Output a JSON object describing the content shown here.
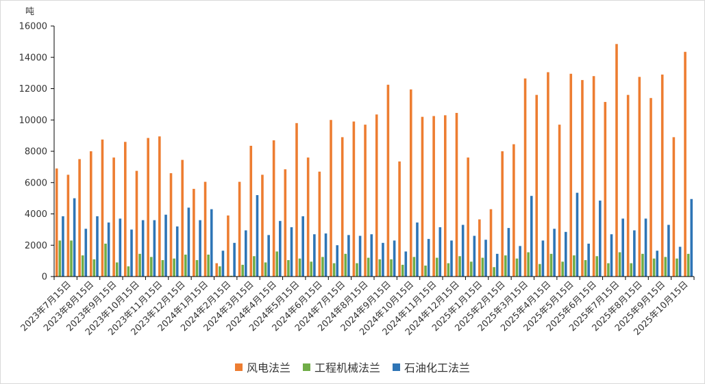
{
  "chart_data": {
    "type": "bar",
    "ylabel": "吨",
    "ylim": [
      0,
      16000
    ],
    "yticks": [
      0,
      2000,
      4000,
      6000,
      8000,
      10000,
      12000,
      14000,
      16000
    ],
    "legend_position": "bottom",
    "grid": false,
    "x_tick_labels": [
      "2023年7月15日",
      "2023年8月15日",
      "2023年9月15日",
      "2023年10月15日",
      "2023年11月15日",
      "2023年12月15日",
      "2024年1月15日",
      "2024年2月15日",
      "2024年3月15日",
      "2024年4月15日",
      "2024年5月15日",
      "2024年6月15日",
      "2024年7月15日",
      "2024年8月15日",
      "2024年9月15日",
      "2024年10月15日",
      "2024年11月15日",
      "2024年12月15日",
      "2025年1月15日",
      "2025年2月15日",
      "2025年3月15日",
      "2025年4月15日",
      "2025年5月15日",
      "2025年6月15日",
      "2025年7月15日",
      "2025年8月15日",
      "2025年9月15日",
      "2025年10月15日"
    ],
    "x_tick_positions": [
      1,
      3,
      5,
      7,
      9,
      11,
      13,
      15,
      17,
      19,
      21,
      23,
      25,
      27,
      29,
      31,
      33,
      35,
      37,
      39,
      41,
      43,
      45,
      47,
      49,
      51,
      53,
      55
    ],
    "series": [
      {
        "name": "风电法兰",
        "color": "#ED7D31",
        "values": [
          6900,
          6500,
          7500,
          8000,
          8750,
          7600,
          8600,
          6750,
          8850,
          8950,
          6600,
          7450,
          5600,
          6050,
          850,
          3900,
          6050,
          8350,
          6500,
          8700,
          6850,
          9800,
          7600,
          6700,
          10000,
          8900,
          9900,
          9700,
          10350,
          12250,
          7350,
          11950,
          10200,
          10250,
          10300,
          10450,
          7600,
          3650,
          4300,
          8000,
          8450,
          12650,
          11600,
          13050,
          9700,
          12950,
          12550,
          12800,
          11150,
          14850,
          11600,
          12750,
          11400,
          12900,
          8900,
          14350
        ]
      },
      {
        "name": "工程机械法兰",
        "color": "#70AD47",
        "values": [
          2300,
          2300,
          1350,
          1100,
          2100,
          900,
          650,
          1450,
          1250,
          1050,
          1150,
          1400,
          1050,
          1400,
          650,
          50,
          750,
          1300,
          900,
          1600,
          1050,
          1150,
          950,
          1250,
          850,
          1450,
          850,
          1200,
          1100,
          1100,
          750,
          1250,
          700,
          1200,
          850,
          1300,
          950,
          1200,
          600,
          1350,
          1150,
          1550,
          800,
          1450,
          950,
          1350,
          1050,
          1300,
          850,
          1550,
          850,
          1450,
          1150,
          1250,
          1150,
          1450
        ]
      },
      {
        "name": "石油化工法兰",
        "color": "#2E75B6",
        "values": [
          3850,
          5000,
          3050,
          3850,
          3450,
          3700,
          3000,
          3600,
          3600,
          3950,
          3200,
          4400,
          3600,
          4300,
          1650,
          2150,
          2950,
          5200,
          2650,
          3550,
          3150,
          3850,
          2700,
          2750,
          2000,
          2650,
          2600,
          2700,
          2150,
          2300,
          1600,
          3450,
          2400,
          3150,
          2300,
          3300,
          2600,
          2350,
          1450,
          3100,
          1950,
          5150,
          2300,
          3050,
          2850,
          5350,
          2100,
          4850,
          2700,
          3700,
          2950,
          3700,
          1650,
          3300,
          1900,
          4950
        ]
      }
    ]
  }
}
